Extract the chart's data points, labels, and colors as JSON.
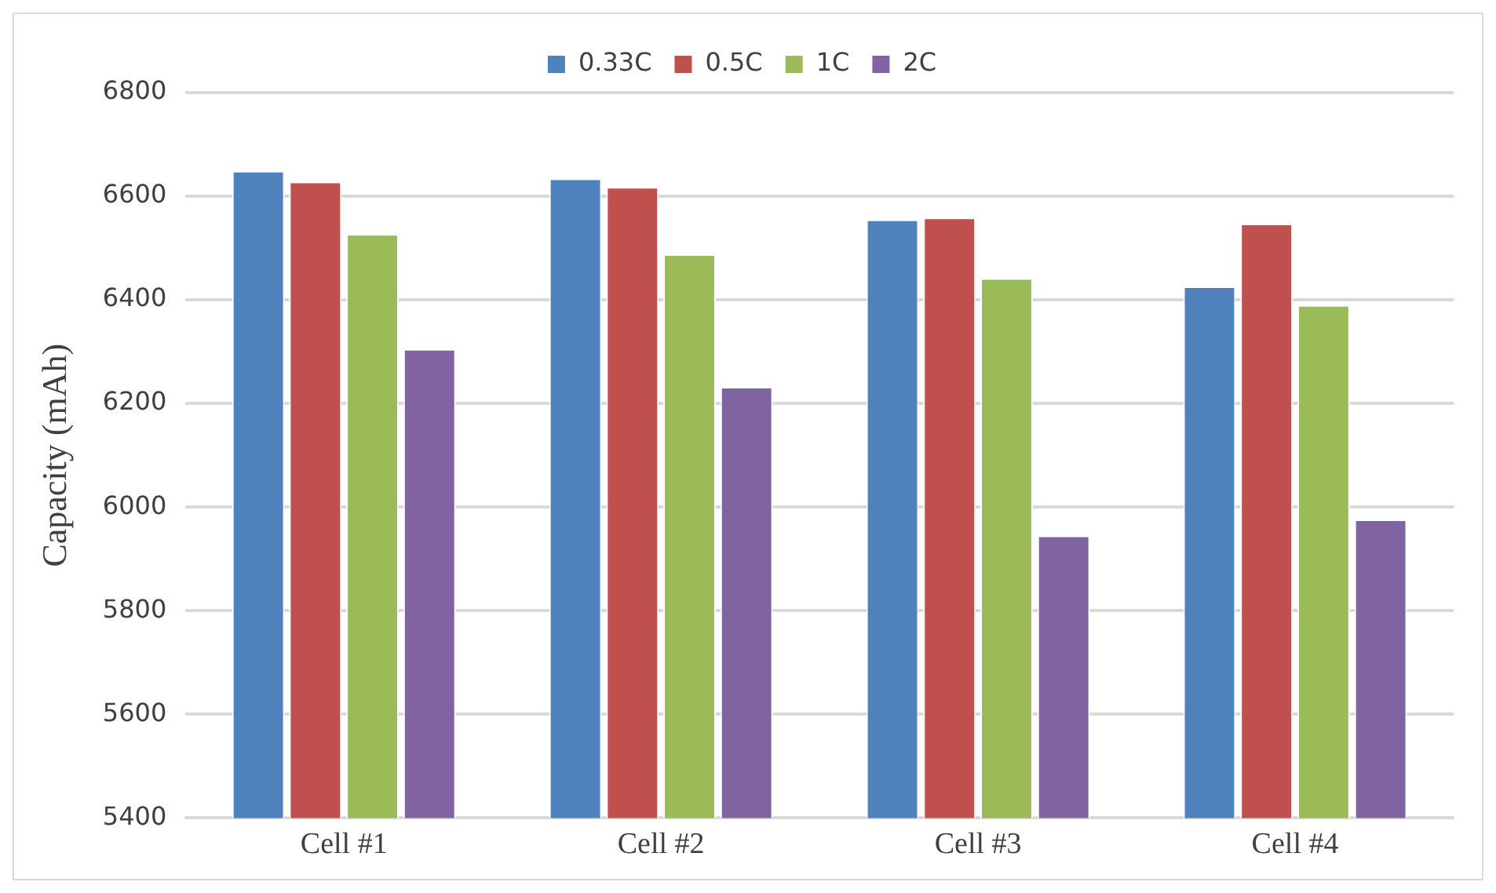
{
  "chart_data": {
    "type": "bar",
    "ylabel": "Capacity (mAh)",
    "categories": [
      "Cell #1",
      "Cell #2",
      "Cell #3",
      "Cell #4"
    ],
    "series": [
      {
        "name": "0.33C",
        "color": "#4f81bd",
        "values": [
          6649,
          6634,
          6555,
          6426
        ]
      },
      {
        "name": "0.5C",
        "color": "#c0504d",
        "values": [
          6628,
          6618,
          6559,
          6547
        ]
      },
      {
        "name": "1C",
        "color": "#9bbb59",
        "values": [
          6527,
          6488,
          6442,
          6390
        ]
      },
      {
        "name": "2C",
        "color": "#8064a2",
        "values": [
          6305,
          6232,
          5945,
          5976
        ]
      }
    ],
    "ylim": [
      5400,
      6800
    ],
    "yticks": [
      5400,
      5600,
      5800,
      6000,
      6200,
      6400,
      6600,
      6800
    ],
    "grid": "y",
    "legend": "top"
  }
}
